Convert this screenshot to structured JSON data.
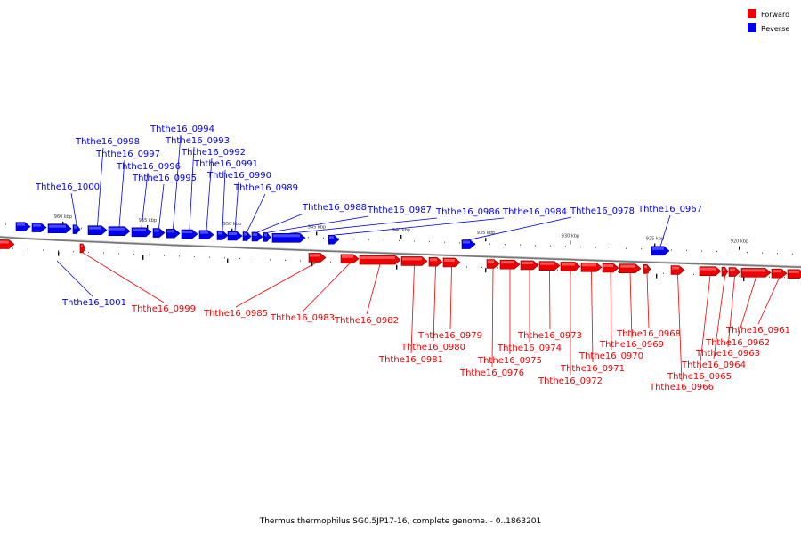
{
  "caption": "Thermus thermophilus SG0.5JP17-16, complete genome. - 0..1863201",
  "legend": [
    {
      "label": "Forward",
      "color": "#ee0000"
    },
    {
      "label": "Reverse",
      "color": "#0000ee"
    }
  ],
  "colors": {
    "forward": "#ee0000",
    "reverse": "#0000ee",
    "axis": "#888888"
  },
  "axis": {
    "ticks": [
      "960 kbp",
      "955 kbp",
      "950 kbp",
      "945 kbp",
      "940 kbp",
      "935 kbp",
      "930 kbp",
      "925 kbp",
      "920 kbp"
    ]
  },
  "reverse_genes": [
    {
      "name": "Ththe16_1001"
    },
    {
      "name": "Ththe16_1000"
    },
    {
      "name": "Ththe16_0998"
    },
    {
      "name": "Ththe16_0997"
    },
    {
      "name": "Ththe16_0996"
    },
    {
      "name": "Ththe16_0995"
    },
    {
      "name": "Ththe16_0994"
    },
    {
      "name": "Ththe16_0993"
    },
    {
      "name": "Ththe16_0992"
    },
    {
      "name": "Ththe16_0991"
    },
    {
      "name": "Ththe16_0990"
    },
    {
      "name": "Ththe16_0989"
    },
    {
      "name": "Ththe16_0988"
    },
    {
      "name": "Ththe16_0987"
    },
    {
      "name": "Ththe16_0986"
    },
    {
      "name": "Ththe16_0984"
    },
    {
      "name": "Ththe16_0978"
    },
    {
      "name": "Ththe16_0967"
    }
  ],
  "forward_genes": [
    {
      "name": "Ththe16_0999"
    },
    {
      "name": "Ththe16_0985"
    },
    {
      "name": "Ththe16_0983"
    },
    {
      "name": "Ththe16_0982"
    },
    {
      "name": "Ththe16_0981"
    },
    {
      "name": "Ththe16_0980"
    },
    {
      "name": "Ththe16_0979"
    },
    {
      "name": "Ththe16_0976"
    },
    {
      "name": "Ththe16_0975"
    },
    {
      "name": "Ththe16_0974"
    },
    {
      "name": "Ththe16_0973"
    },
    {
      "name": "Ththe16_0972"
    },
    {
      "name": "Ththe16_0971"
    },
    {
      "name": "Ththe16_0970"
    },
    {
      "name": "Ththe16_0969"
    },
    {
      "name": "Ththe16_0968"
    },
    {
      "name": "Ththe16_0966"
    },
    {
      "name": "Ththe16_0965"
    },
    {
      "name": "Ththe16_0964"
    },
    {
      "name": "Ththe16_0963"
    },
    {
      "name": "Ththe16_0962"
    },
    {
      "name": "Ththe16_0961"
    }
  ]
}
